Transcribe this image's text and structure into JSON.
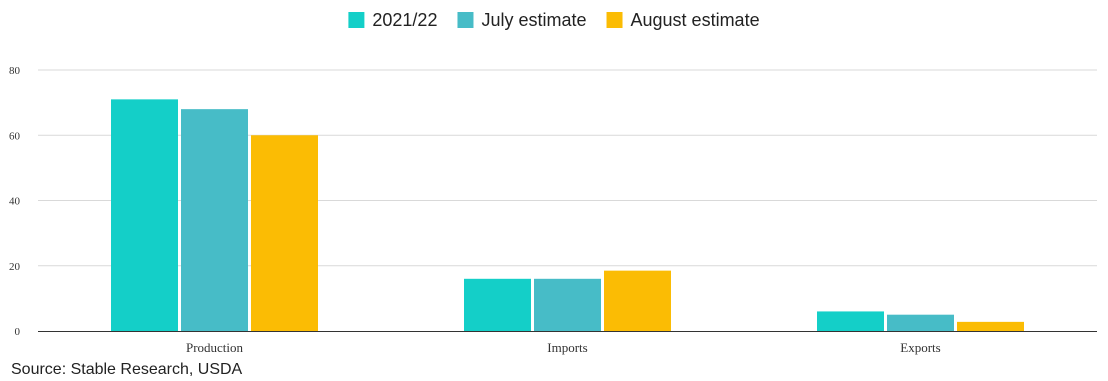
{
  "chart_data": {
    "type": "bar",
    "categories": [
      "Production",
      "Imports",
      "Exports"
    ],
    "series": [
      {
        "name": "2021/22",
        "values": [
          71,
          16,
          6
        ],
        "color": "#14cfc8"
      },
      {
        "name": "July estimate",
        "values": [
          68,
          16,
          5
        ],
        "color": "#47bcc7"
      },
      {
        "name": "August estimate",
        "values": [
          60,
          18.5,
          2.8
        ],
        "color": "#fbbc04"
      }
    ],
    "yticks": [
      0,
      20,
      40,
      60,
      80
    ],
    "ylim": [
      0,
      80
    ],
    "grid": true,
    "legend_position": "top-center"
  },
  "footer": {
    "source": "Source: Stable Research, USDA"
  }
}
